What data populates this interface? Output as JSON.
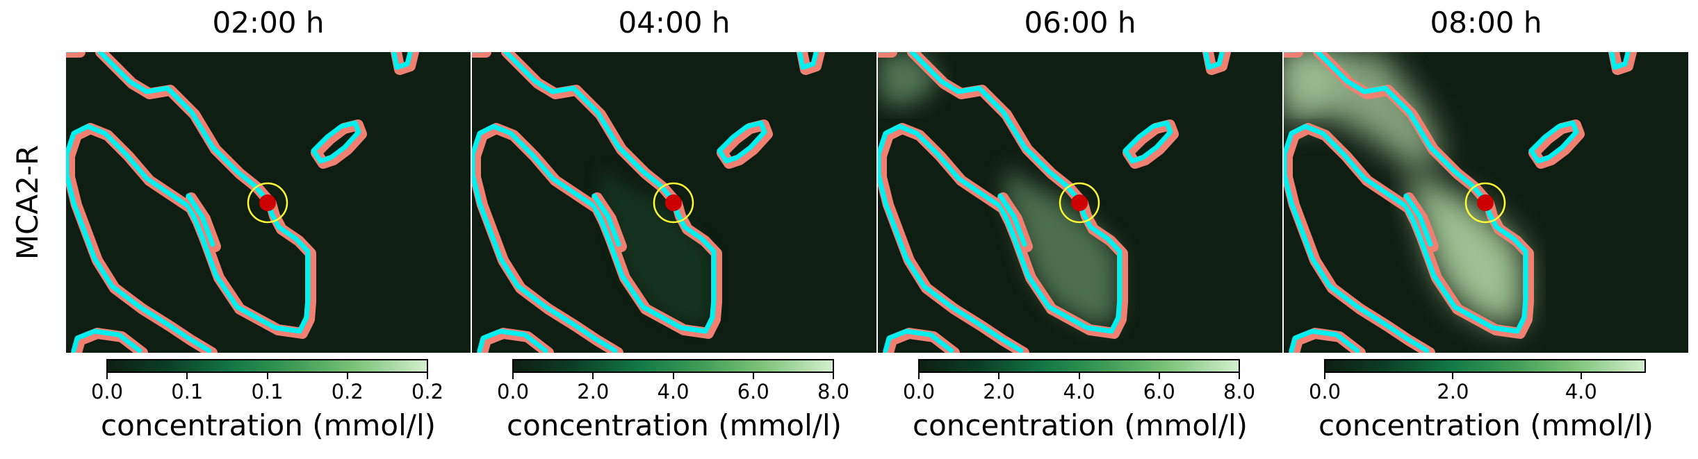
{
  "ylabel": "MCA2-R",
  "cbar_label": "concentration (mmol/l)",
  "colors": {
    "background_dark": "#0f1e12",
    "vessel_outline": "#f08072",
    "vessel_center": "#00f0f0",
    "injection_point": "#cc0000",
    "injection_ring": "#ffff33"
  },
  "chart_data": [
    {
      "type": "heatmap",
      "title": "02:00 h",
      "level": 0.02,
      "colorbar": {
        "label": "concentration (mmol/l)",
        "ticks": [
          "0.0",
          "0.1",
          "0.1",
          "0.2",
          "0.2"
        ],
        "tick_values": [
          0.0,
          0.05,
          0.1,
          0.15,
          0.2
        ],
        "range": [
          0.0,
          0.2
        ]
      }
    },
    {
      "type": "heatmap",
      "title": "04:00 h",
      "level": 0.08,
      "colorbar": {
        "label": "concentration (mmol/l)",
        "ticks": [
          "0.0",
          "2.0",
          "4.0",
          "6.0",
          "8.0"
        ],
        "tick_values": [
          0.0,
          2.0,
          4.0,
          6.0,
          8.0
        ],
        "range": [
          0.0,
          8.0
        ]
      }
    },
    {
      "type": "heatmap",
      "title": "06:00 h",
      "level": 0.45,
      "colorbar": {
        "label": "concentration (mmol/l)",
        "ticks": [
          "0.0",
          "2.0",
          "4.0",
          "6.0",
          "8.0"
        ],
        "tick_values": [
          0.0,
          2.0,
          4.0,
          6.0,
          8.0
        ],
        "range": [
          0.0,
          8.0
        ]
      }
    },
    {
      "type": "heatmap",
      "title": "08:00 h",
      "level": 0.85,
      "colorbar": {
        "label": "concentration (mmol/l)",
        "ticks": [
          "0.0",
          "2.0",
          "4.0"
        ],
        "tick_values": [
          0.0,
          2.0,
          4.0
        ],
        "range": [
          0.0,
          5.0
        ]
      }
    }
  ]
}
